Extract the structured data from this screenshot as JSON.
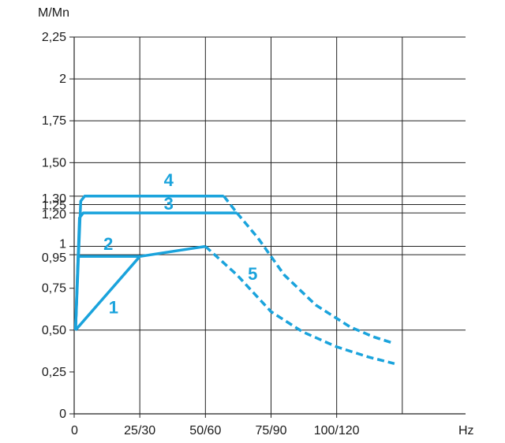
{
  "chart_data": {
    "type": "line",
    "title": "",
    "ylabel": "M/Mn",
    "xlabel": "Hz",
    "xlim": [
      0,
      150
    ],
    "ylim": [
      0,
      2.25
    ],
    "grid": true,
    "x_ticks": [
      {
        "value": 0,
        "label": "0"
      },
      {
        "value": 25,
        "label": "25/30"
      },
      {
        "value": 50,
        "label": "50/60"
      },
      {
        "value": 75,
        "label": "75/90"
      },
      {
        "value": 100,
        "label": "100/120"
      }
    ],
    "x_gridlines": [
      25,
      50,
      75,
      100,
      125
    ],
    "y_ticks": [
      {
        "value": 0,
        "label": "0"
      },
      {
        "value": 0.25,
        "label": "0,25"
      },
      {
        "value": 0.5,
        "label": "0,50"
      },
      {
        "value": 0.75,
        "label": "0,75"
      },
      {
        "value": 0.95,
        "label": "0,95"
      },
      {
        "value": 1.0,
        "label": "1"
      },
      {
        "value": 1.2,
        "label": "1,20"
      },
      {
        "value": 1.25,
        "label": "1,25"
      },
      {
        "value": 1.3,
        "label": "1,30"
      },
      {
        "value": 1.5,
        "label": "1,50"
      },
      {
        "value": 1.75,
        "label": "1,75"
      },
      {
        "value": 2.0,
        "label": "2"
      },
      {
        "value": 2.25,
        "label": "2,25"
      }
    ],
    "y_gridlines": [
      0.5,
      0.95,
      1.0,
      1.2,
      1.25,
      1.3,
      1.5,
      1.75,
      2.0,
      2.25
    ],
    "line_color": "#1aa3dc",
    "series": [
      {
        "label": "1",
        "style": "solid",
        "points": [
          [
            0.5,
            0.5
          ],
          [
            25,
            0.94
          ],
          [
            50,
            1.0
          ]
        ]
      },
      {
        "label": "2",
        "style": "solid",
        "points": [
          [
            0.5,
            0.5
          ],
          [
            1.5,
            0.94
          ],
          [
            25,
            0.94
          ]
        ]
      },
      {
        "label": "3",
        "style": "solid",
        "points": [
          [
            0.5,
            0.5
          ],
          [
            2,
            1.17
          ],
          [
            3.5,
            1.2
          ],
          [
            62,
            1.2
          ]
        ]
      },
      {
        "label": "4",
        "style": "solid",
        "points": [
          [
            0.5,
            0.5
          ],
          [
            2.5,
            1.27
          ],
          [
            4,
            1.3
          ],
          [
            57,
            1.3
          ]
        ]
      },
      {
        "label": "5",
        "style": "dashed",
        "points": [
          [
            50,
            1.0
          ],
          [
            62,
            0.83
          ],
          [
            75,
            0.61
          ],
          [
            87,
            0.49
          ],
          [
            100,
            0.4
          ],
          [
            112,
            0.34
          ],
          [
            122,
            0.3
          ]
        ]
      },
      {
        "label": "",
        "style": "dashed",
        "points": [
          [
            62,
            1.2
          ],
          [
            70,
            1.05
          ],
          [
            80,
            0.83
          ],
          [
            92,
            0.65
          ],
          [
            105,
            0.52
          ],
          [
            114,
            0.46
          ],
          [
            122,
            0.42
          ]
        ]
      },
      {
        "label": "",
        "style": "dashed",
        "points": [
          [
            57,
            1.3
          ],
          [
            62,
            1.2
          ]
        ]
      }
    ],
    "labels": [
      {
        "text": "1",
        "x": 15,
        "y": 0.6
      },
      {
        "text": "2",
        "x": 13,
        "y": 0.98
      },
      {
        "text": "3",
        "x": 36,
        "y": 1.22
      },
      {
        "text": "4",
        "x": 36,
        "y": 1.36
      },
      {
        "text": "5",
        "x": 68,
        "y": 0.8
      }
    ]
  }
}
